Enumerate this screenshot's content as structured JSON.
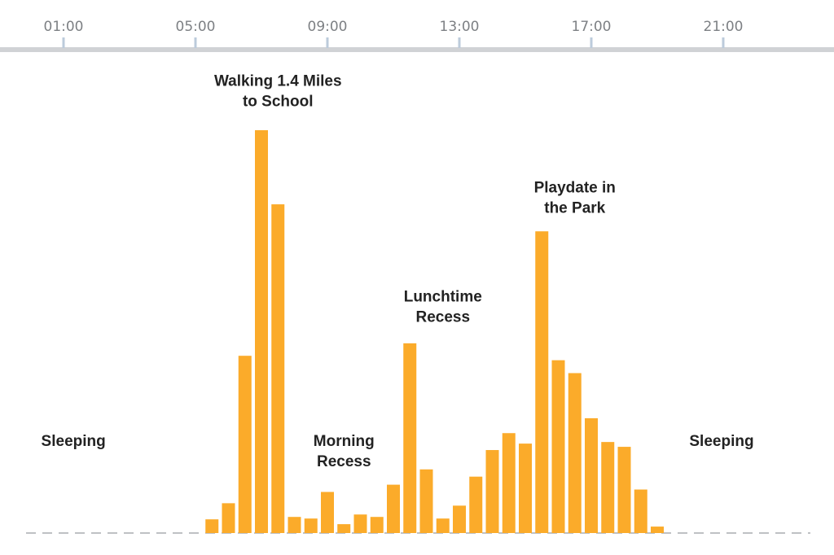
{
  "chart_data": {
    "type": "bar",
    "title": "",
    "xlabel": "",
    "ylabel": "",
    "x_axis": {
      "position": "top",
      "range": [
        -1,
        24
      ],
      "ticks": [
        "01:00",
        "05:00",
        "09:00",
        "13:00",
        "17:00",
        "21:00"
      ]
    },
    "ylim": [
      0,
      100
    ],
    "grid": false,
    "legend": "none",
    "colors": {
      "bar": "#fbab2a",
      "axis": "#d0d2d5",
      "tick": "#bccbdb",
      "baseline": "#bfc1c4"
    },
    "categories": [
      "05:30",
      "06:00",
      "06:30",
      "07:00",
      "07:30",
      "08:00",
      "08:30",
      "09:00",
      "09:30",
      "10:00",
      "10:30",
      "11:00",
      "11:30",
      "12:00",
      "12:30",
      "13:00",
      "13:30",
      "14:00",
      "14:30",
      "15:00",
      "15:30",
      "16:00",
      "16:30",
      "17:00",
      "17:30",
      "18:00",
      "18:30",
      "19:00",
      "19:30"
    ],
    "values": [
      3.4,
      7.4,
      44.0,
      100,
      81.6,
      4.0,
      3.6,
      10.2,
      2.2,
      4.6,
      4.0,
      12.0,
      47.1,
      15.8,
      3.6,
      6.8,
      14.0,
      20.6,
      24.8,
      22.2,
      74.9,
      42.9,
      39.7,
      28.5,
      22.6,
      21.4,
      10.8,
      1.6,
      0
    ],
    "annotations": [
      {
        "id": "sleeping-left",
        "lines": [
          "Sleeping"
        ],
        "x": 1.3,
        "y": 21.6
      },
      {
        "id": "walking-to-school",
        "lines": [
          "Walking 1.4 Miles",
          "to School"
        ],
        "x": 7.5,
        "y": 111
      },
      {
        "id": "morning-recess",
        "lines": [
          "Morning",
          "Recess"
        ],
        "x": 9.5,
        "y": 21.6
      },
      {
        "id": "lunchtime-recess",
        "lines": [
          "Lunchtime",
          "Recess"
        ],
        "x": 12.5,
        "y": 57.5
      },
      {
        "id": "playdate-in-park",
        "lines": [
          "Playdate in",
          "the Park"
        ],
        "x": 16.5,
        "y": 84.5
      },
      {
        "id": "sleeping-right",
        "lines": [
          "Sleeping"
        ],
        "x": 20.95,
        "y": 21.6
      }
    ]
  }
}
